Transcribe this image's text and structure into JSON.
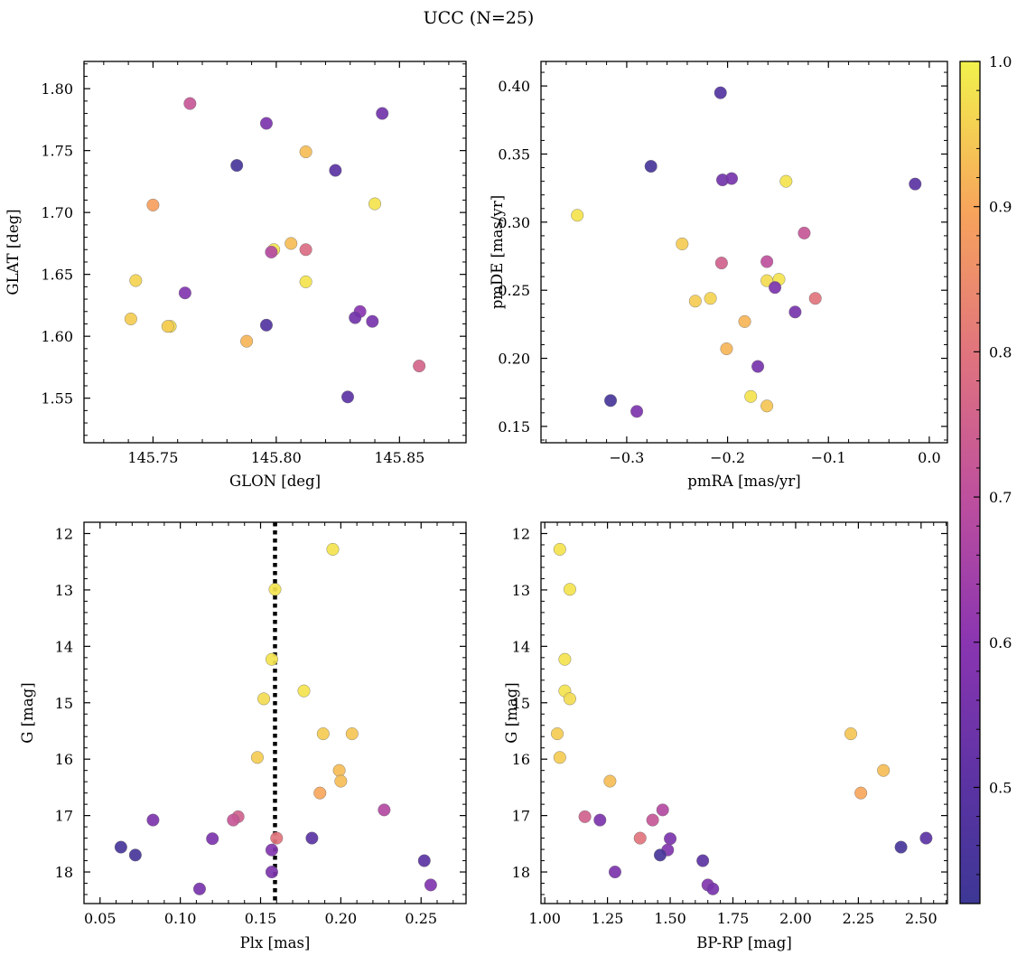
{
  "figure": {
    "suptitle": "UCC (N=25)"
  },
  "colorbar": {
    "colormap": "plasma",
    "range": [
      0.42,
      1.0
    ],
    "ticks": [
      0.5,
      0.6,
      0.7,
      0.8,
      0.9,
      1.0
    ],
    "tick_labels": [
      "0.5",
      "0.6",
      "0.7",
      "0.8",
      "0.9",
      "1.0"
    ]
  },
  "chart_data": [
    {
      "type": "scatter",
      "xlabel": "GLON [deg]",
      "ylabel": "GLAT [deg]",
      "xlim": [
        145.722,
        145.877
      ],
      "ylim": [
        1.514,
        1.822
      ],
      "y_inverted": false,
      "xticks": [
        145.75,
        145.8,
        145.85
      ],
      "xtick_labels": [
        "145.75",
        "145.80",
        "145.85"
      ],
      "yticks": [
        1.55,
        1.6,
        1.65,
        1.7,
        1.75,
        1.8
      ],
      "ytick_labels": [
        "1.55",
        "1.60",
        "1.65",
        "1.70",
        "1.75",
        "1.80"
      ],
      "color_by": "membership probability (colorbar)",
      "points": [
        {
          "x": 145.765,
          "y": 1.788,
          "c": 0.72
        },
        {
          "x": 145.796,
          "y": 1.772,
          "c": 0.57
        },
        {
          "x": 145.843,
          "y": 1.78,
          "c": 0.55
        },
        {
          "x": 145.812,
          "y": 1.749,
          "c": 0.93
        },
        {
          "x": 145.784,
          "y": 1.738,
          "c": 0.45
        },
        {
          "x": 145.824,
          "y": 1.734,
          "c": 0.5
        },
        {
          "x": 145.75,
          "y": 1.706,
          "c": 0.89
        },
        {
          "x": 145.84,
          "y": 1.707,
          "c": 0.98
        },
        {
          "x": 145.806,
          "y": 1.675,
          "c": 0.93
        },
        {
          "x": 145.799,
          "y": 1.67,
          "c": 0.98
        },
        {
          "x": 145.798,
          "y": 1.668,
          "c": 0.68
        },
        {
          "x": 145.812,
          "y": 1.67,
          "c": 0.78
        },
        {
          "x": 145.743,
          "y": 1.645,
          "c": 0.96
        },
        {
          "x": 145.812,
          "y": 1.644,
          "c": 0.98
        },
        {
          "x": 145.763,
          "y": 1.635,
          "c": 0.58
        },
        {
          "x": 145.834,
          "y": 1.62,
          "c": 0.6
        },
        {
          "x": 145.741,
          "y": 1.614,
          "c": 0.95
        },
        {
          "x": 145.832,
          "y": 1.615,
          "c": 0.55
        },
        {
          "x": 145.839,
          "y": 1.612,
          "c": 0.56
        },
        {
          "x": 145.757,
          "y": 1.608,
          "c": 0.97
        },
        {
          "x": 145.756,
          "y": 1.608,
          "c": 0.95
        },
        {
          "x": 145.796,
          "y": 1.609,
          "c": 0.48
        },
        {
          "x": 145.788,
          "y": 1.596,
          "c": 0.92
        },
        {
          "x": 145.858,
          "y": 1.576,
          "c": 0.76
        },
        {
          "x": 145.829,
          "y": 1.551,
          "c": 0.5
        }
      ]
    },
    {
      "type": "scatter",
      "xlabel": "pmRA [mas/yr]",
      "ylabel": "pmDE [mas/yr]",
      "xlim": [
        -0.385,
        0.018
      ],
      "ylim": [
        0.138,
        0.418
      ],
      "y_inverted": false,
      "xticks": [
        -0.3,
        -0.2,
        -0.1,
        0.0
      ],
      "xtick_labels": [
        "−0.3",
        "−0.2",
        "−0.1",
        "0.0"
      ],
      "yticks": [
        0.15,
        0.2,
        0.25,
        0.3,
        0.35,
        0.4
      ],
      "ytick_labels": [
        "0.15",
        "0.20",
        "0.25",
        "0.30",
        "0.35",
        "0.40"
      ],
      "color_by": "membership probability (colorbar)",
      "points": [
        {
          "x": -0.207,
          "y": 0.395,
          "c": 0.48
        },
        {
          "x": -0.276,
          "y": 0.341,
          "c": 0.45
        },
        {
          "x": -0.205,
          "y": 0.331,
          "c": 0.55
        },
        {
          "x": -0.196,
          "y": 0.332,
          "c": 0.56
        },
        {
          "x": -0.142,
          "y": 0.33,
          "c": 0.98
        },
        {
          "x": -0.014,
          "y": 0.328,
          "c": 0.5
        },
        {
          "x": -0.349,
          "y": 0.305,
          "c": 0.98
        },
        {
          "x": -0.124,
          "y": 0.292,
          "c": 0.72
        },
        {
          "x": -0.245,
          "y": 0.284,
          "c": 0.95
        },
        {
          "x": -0.206,
          "y": 0.27,
          "c": 0.75
        },
        {
          "x": -0.161,
          "y": 0.271,
          "c": 0.7
        },
        {
          "x": -0.149,
          "y": 0.258,
          "c": 0.98
        },
        {
          "x": -0.161,
          "y": 0.257,
          "c": 0.97
        },
        {
          "x": -0.153,
          "y": 0.252,
          "c": 0.57
        },
        {
          "x": -0.217,
          "y": 0.244,
          "c": 0.96
        },
        {
          "x": -0.232,
          "y": 0.242,
          "c": 0.95
        },
        {
          "x": -0.113,
          "y": 0.244,
          "c": 0.8
        },
        {
          "x": -0.133,
          "y": 0.234,
          "c": 0.56
        },
        {
          "x": -0.183,
          "y": 0.227,
          "c": 0.92
        },
        {
          "x": -0.201,
          "y": 0.207,
          "c": 0.92
        },
        {
          "x": -0.17,
          "y": 0.194,
          "c": 0.56
        },
        {
          "x": -0.177,
          "y": 0.172,
          "c": 0.98
        },
        {
          "x": -0.316,
          "y": 0.169,
          "c": 0.45
        },
        {
          "x": -0.161,
          "y": 0.165,
          "c": 0.94
        },
        {
          "x": -0.29,
          "y": 0.161,
          "c": 0.57
        }
      ]
    },
    {
      "type": "scatter",
      "xlabel": "Plx [mas]",
      "ylabel": "G [mag]",
      "xlim": [
        0.04,
        0.278
      ],
      "ylim": [
        18.56,
        11.8
      ],
      "y_inverted": true,
      "xticks": [
        0.05,
        0.1,
        0.15,
        0.2,
        0.25
      ],
      "xtick_labels": [
        "0.05",
        "0.10",
        "0.15",
        "0.20",
        "0.25"
      ],
      "yticks": [
        12,
        13,
        14,
        15,
        16,
        17,
        18
      ],
      "ytick_labels": [
        "12",
        "13",
        "14",
        "15",
        "16",
        "17",
        "18"
      ],
      "color_by": "membership probability (colorbar)",
      "vline": {
        "x": 0.159,
        "style": "dotted",
        "color": "#000000"
      },
      "points": [
        {
          "x": 0.195,
          "y": 12.28,
          "c": 0.98
        },
        {
          "x": 0.159,
          "y": 12.99,
          "c": 0.98
        },
        {
          "x": 0.157,
          "y": 14.23,
          "c": 0.98
        },
        {
          "x": 0.177,
          "y": 14.79,
          "c": 0.98
        },
        {
          "x": 0.152,
          "y": 14.93,
          "c": 0.97
        },
        {
          "x": 0.189,
          "y": 15.55,
          "c": 0.95
        },
        {
          "x": 0.207,
          "y": 15.55,
          "c": 0.94
        },
        {
          "x": 0.148,
          "y": 15.97,
          "c": 0.95
        },
        {
          "x": 0.199,
          "y": 16.2,
          "c": 0.93
        },
        {
          "x": 0.2,
          "y": 16.39,
          "c": 0.93
        },
        {
          "x": 0.187,
          "y": 16.6,
          "c": 0.9
        },
        {
          "x": 0.227,
          "y": 16.9,
          "c": 0.68
        },
        {
          "x": 0.136,
          "y": 17.02,
          "c": 0.75
        },
        {
          "x": 0.133,
          "y": 17.08,
          "c": 0.72
        },
        {
          "x": 0.083,
          "y": 17.08,
          "c": 0.57
        },
        {
          "x": 0.12,
          "y": 17.41,
          "c": 0.57
        },
        {
          "x": 0.182,
          "y": 17.4,
          "c": 0.5
        },
        {
          "x": 0.16,
          "y": 17.4,
          "c": 0.8
        },
        {
          "x": 0.063,
          "y": 17.56,
          "c": 0.45
        },
        {
          "x": 0.157,
          "y": 17.61,
          "c": 0.58
        },
        {
          "x": 0.072,
          "y": 17.7,
          "c": 0.45
        },
        {
          "x": 0.252,
          "y": 17.8,
          "c": 0.5
        },
        {
          "x": 0.157,
          "y": 18.0,
          "c": 0.57
        },
        {
          "x": 0.256,
          "y": 18.23,
          "c": 0.58
        },
        {
          "x": 0.112,
          "y": 18.3,
          "c": 0.56
        }
      ]
    },
    {
      "type": "scatter",
      "xlabel": "BP-RP [mag]",
      "ylabel": "G [mag]",
      "xlim": [
        0.985,
        2.605
      ],
      "ylim": [
        18.56,
        11.8
      ],
      "y_inverted": true,
      "xticks": [
        1.0,
        1.25,
        1.5,
        1.75,
        2.0,
        2.25,
        2.5
      ],
      "xtick_labels": [
        "1.00",
        "1.25",
        "1.50",
        "1.75",
        "2.00",
        "2.25",
        "2.50"
      ],
      "yticks": [
        12,
        13,
        14,
        15,
        16,
        17,
        18
      ],
      "ytick_labels": [
        "12",
        "13",
        "14",
        "15",
        "16",
        "17",
        "18"
      ],
      "color_by": "membership probability (colorbar)",
      "points": [
        {
          "x": 1.06,
          "y": 12.28,
          "c": 0.98
        },
        {
          "x": 1.1,
          "y": 12.99,
          "c": 0.98
        },
        {
          "x": 1.08,
          "y": 14.23,
          "c": 0.98
        },
        {
          "x": 1.08,
          "y": 14.79,
          "c": 0.98
        },
        {
          "x": 1.1,
          "y": 14.93,
          "c": 0.97
        },
        {
          "x": 1.05,
          "y": 15.55,
          "c": 0.95
        },
        {
          "x": 2.22,
          "y": 15.55,
          "c": 0.94
        },
        {
          "x": 1.06,
          "y": 15.97,
          "c": 0.95
        },
        {
          "x": 2.35,
          "y": 16.2,
          "c": 0.93
        },
        {
          "x": 1.26,
          "y": 16.39,
          "c": 0.93
        },
        {
          "x": 2.26,
          "y": 16.6,
          "c": 0.9
        },
        {
          "x": 1.47,
          "y": 16.9,
          "c": 0.68
        },
        {
          "x": 1.16,
          "y": 17.02,
          "c": 0.75
        },
        {
          "x": 1.43,
          "y": 17.08,
          "c": 0.72
        },
        {
          "x": 1.22,
          "y": 17.08,
          "c": 0.57
        },
        {
          "x": 1.5,
          "y": 17.41,
          "c": 0.57
        },
        {
          "x": 2.52,
          "y": 17.4,
          "c": 0.5
        },
        {
          "x": 1.38,
          "y": 17.4,
          "c": 0.8
        },
        {
          "x": 2.42,
          "y": 17.56,
          "c": 0.45
        },
        {
          "x": 1.49,
          "y": 17.61,
          "c": 0.58
        },
        {
          "x": 1.46,
          "y": 17.7,
          "c": 0.45
        },
        {
          "x": 1.63,
          "y": 17.8,
          "c": 0.5
        },
        {
          "x": 1.28,
          "y": 18.0,
          "c": 0.57
        },
        {
          "x": 1.65,
          "y": 18.23,
          "c": 0.58
        },
        {
          "x": 1.67,
          "y": 18.3,
          "c": 0.56
        }
      ]
    }
  ]
}
